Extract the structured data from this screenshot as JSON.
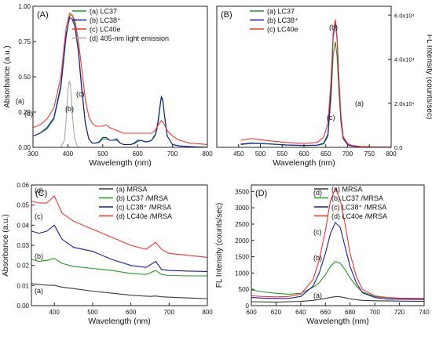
{
  "colors": {
    "green": "#1f9a1f",
    "blue": "#1a1aa8",
    "red": "#ff3030",
    "gray": "#a9a9a9",
    "dark": "#3a3a3a"
  },
  "chart_data": [
    {
      "panel": "(A)",
      "type": "line",
      "xlabel": "Wavelength (nm)",
      "ylabel": "Absorbance (a.u.)",
      "xlim": [
        300,
        800
      ],
      "ylim": [
        0,
        1.0
      ],
      "xticks": [
        "300",
        "400",
        "500",
        "600",
        "700",
        "800"
      ],
      "yticks": [
        "0.00",
        "0.25",
        "0.50",
        "0.75",
        "1.00"
      ],
      "legend": {
        "placement": "top-right"
      },
      "series": [
        {
          "name": "(a) LC37",
          "color": "green",
          "x": [
            300,
            320,
            340,
            360,
            380,
            395,
            405,
            412,
            420,
            430,
            440,
            450,
            460,
            470,
            480,
            490,
            500,
            510,
            520,
            530,
            540,
            550,
            560,
            570,
            580,
            590,
            600,
            610,
            620,
            630,
            640,
            650,
            655,
            660,
            665,
            668,
            672,
            677,
            685,
            700,
            720,
            750,
            800
          ],
          "y": [
            0.08,
            0.1,
            0.13,
            0.2,
            0.42,
            0.78,
            0.93,
            0.94,
            0.88,
            0.7,
            0.42,
            0.18,
            0.06,
            0.03,
            0.03,
            0.035,
            0.06,
            0.06,
            0.05,
            0.05,
            0.05,
            0.03,
            0.02,
            0.02,
            0.02,
            0.025,
            0.04,
            0.05,
            0.04,
            0.04,
            0.05,
            0.08,
            0.12,
            0.19,
            0.3,
            0.35,
            0.33,
            0.22,
            0.08,
            0.02,
            0.01,
            0.005,
            0.0
          ]
        },
        {
          "name": "(b) LC38⁺",
          "color": "blue",
          "x": [
            300,
            320,
            340,
            360,
            380,
            395,
            405,
            412,
            420,
            430,
            440,
            450,
            460,
            470,
            480,
            490,
            500,
            510,
            520,
            530,
            540,
            550,
            560,
            570,
            580,
            590,
            600,
            610,
            620,
            630,
            640,
            650,
            655,
            660,
            665,
            668,
            672,
            677,
            685,
            700,
            720,
            750,
            800
          ],
          "y": [
            0.08,
            0.1,
            0.14,
            0.21,
            0.44,
            0.8,
            0.92,
            0.91,
            0.86,
            0.68,
            0.4,
            0.17,
            0.06,
            0.03,
            0.03,
            0.04,
            0.07,
            0.07,
            0.05,
            0.05,
            0.06,
            0.03,
            0.02,
            0.02,
            0.02,
            0.03,
            0.05,
            0.05,
            0.04,
            0.04,
            0.05,
            0.09,
            0.13,
            0.21,
            0.31,
            0.36,
            0.34,
            0.23,
            0.08,
            0.02,
            0.01,
            0.005,
            0.0
          ]
        },
        {
          "name": "(c) LC40e",
          "color": "red",
          "x": [
            300,
            320,
            340,
            360,
            380,
            395,
            405,
            412,
            420,
            430,
            440,
            450,
            460,
            470,
            480,
            490,
            500,
            510,
            520,
            530,
            540,
            550,
            560,
            570,
            580,
            590,
            600,
            610,
            620,
            630,
            640,
            650,
            655,
            660,
            665,
            668,
            672,
            677,
            685,
            700,
            720,
            750,
            800
          ],
          "y": [
            0.14,
            0.16,
            0.2,
            0.28,
            0.5,
            0.85,
            0.95,
            0.94,
            0.9,
            0.76,
            0.55,
            0.34,
            0.22,
            0.17,
            0.15,
            0.15,
            0.15,
            0.16,
            0.14,
            0.13,
            0.12,
            0.11,
            0.1,
            0.1,
            0.1,
            0.1,
            0.1,
            0.1,
            0.1,
            0.1,
            0.1,
            0.12,
            0.14,
            0.16,
            0.18,
            0.19,
            0.18,
            0.16,
            0.12,
            0.08,
            0.05,
            0.03,
            0.02
          ]
        },
        {
          "name": "(d) 405-nm light emission",
          "color": "gray",
          "x": [
            380,
            390,
            395,
            400,
            404,
            407,
            410,
            415,
            420,
            425,
            430
          ],
          "y": [
            0.0,
            0.05,
            0.2,
            0.4,
            0.47,
            0.45,
            0.35,
            0.17,
            0.06,
            0.02,
            0.0
          ]
        }
      ],
      "annotations": [
        "(a)",
        "(d)",
        "(b)",
        "(c)"
      ]
    },
    {
      "panel": "(B)",
      "type": "line",
      "xlabel": "Wavelength (nm)",
      "ylabel": "FL Intensity (counts/sec)",
      "xlim": [
        400,
        800
      ],
      "ylim": [
        0,
        64000
      ],
      "xticks": [
        "450",
        "500",
        "550",
        "600",
        "650",
        "700",
        "750",
        "800"
      ],
      "yticks": [
        "0.0",
        "2.0x10⁴",
        "4.0x10⁴",
        "6.0x10⁴"
      ],
      "legend": {
        "placement": "top-left"
      },
      "series": [
        {
          "name": "(a) LC37",
          "color": "green",
          "x": [
            455,
            480,
            520,
            560,
            600,
            630,
            645,
            655,
            662,
            667,
            672,
            676,
            680,
            685,
            690,
            700,
            710,
            730,
            760,
            800
          ],
          "y": [
            1200,
            1800,
            1500,
            1000,
            800,
            900,
            1500,
            5000,
            22000,
            42000,
            48000,
            41000,
            26000,
            11000,
            4000,
            1200,
            600,
            300,
            100,
            0
          ]
        },
        {
          "name": "(b) LC38⁺",
          "color": "blue",
          "x": [
            455,
            480,
            520,
            560,
            600,
            630,
            645,
            655,
            662,
            667,
            672,
            676,
            680,
            685,
            690,
            700,
            710,
            730,
            760,
            800
          ],
          "y": [
            1500,
            2000,
            1600,
            1100,
            900,
            1000,
            1800,
            6000,
            26000,
            50000,
            57000,
            49000,
            30000,
            12000,
            4000,
            1200,
            600,
            300,
            100,
            0
          ]
        },
        {
          "name": "(c) LC40e",
          "color": "red",
          "x": [
            455,
            480,
            520,
            560,
            600,
            630,
            645,
            655,
            662,
            667,
            672,
            676,
            680,
            685,
            690,
            700,
            710,
            730,
            760,
            800
          ],
          "y": [
            3200,
            4000,
            3000,
            2200,
            1800,
            2200,
            4500,
            11000,
            30000,
            52000,
            58000,
            50000,
            32000,
            14000,
            5000,
            1800,
            900,
            400,
            200,
            100
          ]
        }
      ],
      "annotations": [
        "(b)",
        "(a)",
        "(c)"
      ]
    },
    {
      "panel": "(C)",
      "type": "line",
      "xlabel": "Wavelength (nm)",
      "ylabel": "Absorbance (a.u.)",
      "xlim": [
        340,
        800
      ],
      "ylim": [
        0,
        0.06
      ],
      "xticks": [
        "400",
        "500",
        "600",
        "700",
        "800"
      ],
      "yticks": [
        "0.00",
        "0.01",
        "0.02",
        "0.03",
        "0.04",
        "0.05",
        "0.06"
      ],
      "legend": {
        "placement": "top-right"
      },
      "series": [
        {
          "name": "(a) MRSA",
          "color": "dark",
          "x": [
            340,
            360,
            380,
            400,
            420,
            450,
            500,
            550,
            600,
            650,
            665,
            680,
            700,
            750,
            800
          ],
          "y": [
            0.011,
            0.0105,
            0.0102,
            0.0101,
            0.0092,
            0.0085,
            0.0072,
            0.0062,
            0.0052,
            0.0046,
            0.0048,
            0.0044,
            0.0042,
            0.0038,
            0.0035
          ]
        },
        {
          "name": "(b) LC37 /MRSA",
          "color": "green",
          "x": [
            340,
            360,
            380,
            400,
            420,
            450,
            500,
            550,
            600,
            640,
            665,
            680,
            700,
            750,
            800
          ],
          "y": [
            0.023,
            0.022,
            0.0225,
            0.0235,
            0.021,
            0.0195,
            0.0185,
            0.0175,
            0.016,
            0.0155,
            0.0175,
            0.0155,
            0.015,
            0.0148,
            0.0148
          ]
        },
        {
          "name": "(c) LC38⁺ /MRSA",
          "color": "blue",
          "x": [
            340,
            360,
            380,
            400,
            420,
            450,
            500,
            550,
            600,
            640,
            665,
            680,
            700,
            750,
            800
          ],
          "y": [
            0.037,
            0.036,
            0.037,
            0.04,
            0.033,
            0.029,
            0.027,
            0.023,
            0.02,
            0.019,
            0.022,
            0.018,
            0.0175,
            0.0172,
            0.017
          ]
        },
        {
          "name": "(d) LC40e /MRSA",
          "color": "red",
          "x": [
            340,
            360,
            380,
            400,
            420,
            450,
            500,
            550,
            600,
            640,
            665,
            680,
            700,
            750,
            800
          ],
          "y": [
            0.052,
            0.051,
            0.051,
            0.0545,
            0.046,
            0.042,
            0.038,
            0.034,
            0.03,
            0.028,
            0.0315,
            0.028,
            0.026,
            0.025,
            0.024
          ]
        }
      ],
      "annotations": [
        "(d)",
        "(c)",
        "(b)",
        "(a)"
      ]
    },
    {
      "panel": "(D)",
      "type": "line",
      "xlabel": "Wavelength (nm)",
      "ylabel": "FL Intensity (counts/sec)",
      "xlim": [
        600,
        740
      ],
      "ylim": [
        0,
        3700
      ],
      "xticks": [
        "600",
        "620",
        "640",
        "660",
        "680",
        "700",
        "720",
        "740"
      ],
      "yticks": [
        "0",
        "500",
        "1000",
        "1500",
        "2000",
        "2500",
        "3000",
        "3500"
      ],
      "legend": {
        "placement": "top-right"
      },
      "series": [
        {
          "name": "(a) MRSA",
          "color": "dark",
          "x": [
            600,
            620,
            640,
            650,
            660,
            665,
            670,
            675,
            680,
            690,
            700,
            720,
            740
          ],
          "y": [
            120,
            110,
            130,
            160,
            220,
            260,
            280,
            250,
            210,
            160,
            150,
            140,
            130
          ]
        },
        {
          "name": "(b) LC37 /MRSA",
          "color": "green",
          "x": [
            600,
            610,
            620,
            630,
            640,
            650,
            655,
            660,
            664,
            668,
            672,
            676,
            680,
            685,
            690,
            700,
            710,
            720,
            740
          ],
          "y": [
            480,
            420,
            380,
            350,
            380,
            560,
            700,
            950,
            1200,
            1350,
            1300,
            1100,
            850,
            600,
            420,
            280,
            240,
            220,
            210
          ]
        },
        {
          "name": "(c) LC38⁺ /MRSA",
          "color": "blue",
          "x": [
            600,
            610,
            620,
            630,
            640,
            650,
            655,
            660,
            664,
            668,
            672,
            676,
            680,
            685,
            690,
            700,
            710,
            720,
            740
          ],
          "y": [
            250,
            230,
            220,
            220,
            280,
            600,
            1000,
            1600,
            2200,
            2550,
            2400,
            1800,
            1200,
            700,
            400,
            250,
            200,
            200,
            190
          ]
        },
        {
          "name": "(d) LC40e /MRSA",
          "color": "red",
          "x": [
            600,
            610,
            620,
            630,
            640,
            650,
            655,
            660,
            664,
            668,
            672,
            676,
            680,
            685,
            690,
            700,
            710,
            720,
            740
          ],
          "y": [
            300,
            280,
            270,
            280,
            350,
            800,
            1400,
            2300,
            3200,
            3600,
            3250,
            2500,
            1600,
            900,
            500,
            300,
            250,
            230,
            220
          ]
        }
      ],
      "annotations": [
        "(d)",
        "(c)",
        "(b)",
        "(a)"
      ]
    }
  ]
}
